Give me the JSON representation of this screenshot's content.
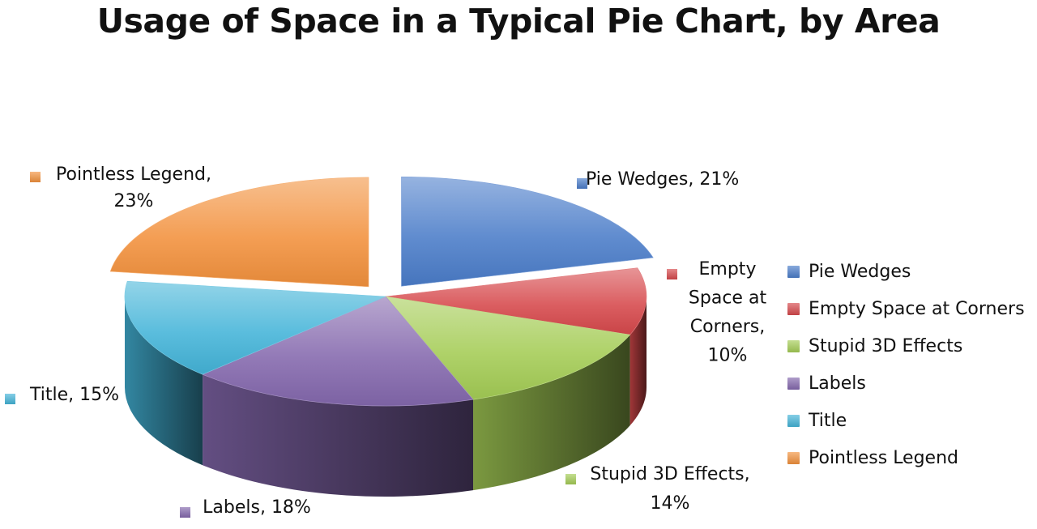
{
  "chart_data": {
    "type": "pie",
    "title": "Usage of Space in a Typical Pie Chart, by Area",
    "three_d": true,
    "exploded_slices": [
      "Pie Wedges",
      "Pointless Legend"
    ],
    "legend_position": "right",
    "categories": [
      "Pie Wedges",
      "Empty Space at Corners",
      "Stupid 3D Effects",
      "Labels",
      "Title",
      "Pointless Legend"
    ],
    "values": [
      21,
      10,
      14,
      18,
      15,
      23
    ],
    "unit": "%",
    "colors": [
      "#4a7cc9",
      "#d6484b",
      "#a4cc55",
      "#8468ad",
      "#44b4d8",
      "#f2913d"
    ],
    "data_labels": [
      {
        "lines": [
          "Pie Wedges, 21%"
        ]
      },
      {
        "lines": [
          "Empty",
          "Space at",
          "Corners,",
          "10%"
        ]
      },
      {
        "lines": [
          "Stupid 3D Effects,",
          "14%"
        ]
      },
      {
        "lines": [
          "Labels, 18%"
        ]
      },
      {
        "lines": [
          "Title, 15%"
        ]
      },
      {
        "lines": [
          "Pointless Legend,",
          "23%"
        ]
      }
    ]
  }
}
